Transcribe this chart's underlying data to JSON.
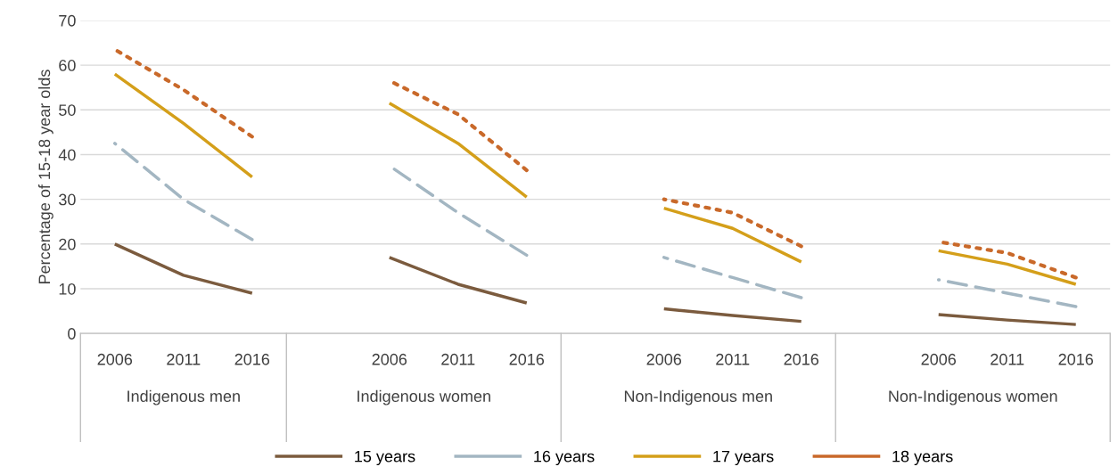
{
  "chart_data": {
    "type": "line",
    "ylabel": "Percentage of 15-18 year olds",
    "categories": [
      "2006",
      "2011",
      "2016",
      null,
      "2006",
      "2011",
      "2016",
      null,
      "2006",
      "2011",
      "2016",
      null,
      "2006",
      "2011",
      "2016"
    ],
    "annotations": [
      "Indigenous men",
      "Indigenous women",
      "Non-Indigenous men",
      "Non-Indigenous women"
    ],
    "series": [
      {
        "name": "15 years",
        "color": "#7b5b3e",
        "line_style": "solid",
        "values": [
          20,
          13,
          9,
          null,
          17,
          11,
          6.8,
          null,
          5.5,
          4,
          2.7,
          null,
          4.2,
          3,
          2
        ]
      },
      {
        "name": "16 years",
        "color": "#a3b6c2",
        "line_style": "dashed",
        "values": [
          42.5,
          30,
          21,
          null,
          37.5,
          27,
          17.5,
          null,
          17,
          12.5,
          8,
          null,
          12,
          9,
          6
        ]
      },
      {
        "name": "17 years",
        "color": "#d49f1a",
        "line_style": "solid",
        "values": [
          58,
          47,
          35,
          null,
          51.5,
          42.5,
          30.5,
          null,
          28,
          23.5,
          16,
          null,
          18.5,
          15.5,
          11
        ]
      },
      {
        "name": "18 years",
        "color": "#c9692a",
        "line_style": "dotted",
        "values": [
          63.5,
          54.5,
          44,
          null,
          56.5,
          49,
          36.5,
          null,
          30,
          27,
          19.5,
          null,
          20.5,
          18,
          12.5
        ]
      }
    ],
    "ylim": [
      0,
      70
    ],
    "yticks": [
      0,
      10,
      20,
      30,
      40,
      50,
      60,
      70
    ],
    "grid": "y",
    "legend": "bottom"
  }
}
